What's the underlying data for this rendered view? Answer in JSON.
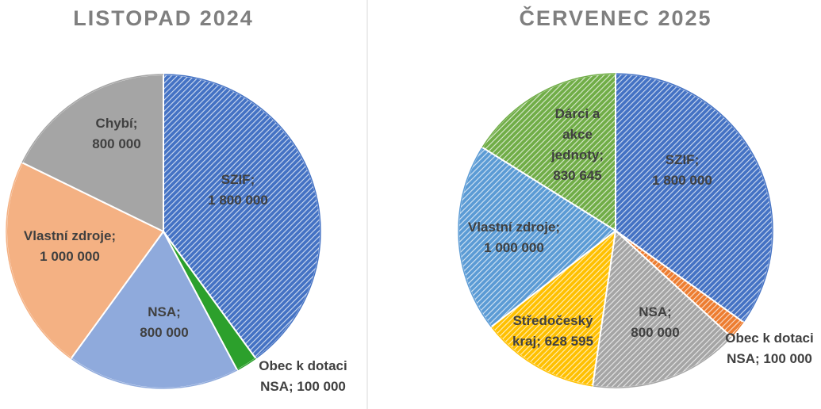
{
  "chart_data": [
    {
      "type": "pie",
      "title": "LISTOPAD 2024",
      "label_separator": ";",
      "categories": [
        "SZIF",
        "Obec k dotaci NSA",
        "NSA",
        "Vlastní zdroje",
        "Chybí"
      ],
      "values": [
        1800000,
        100000,
        800000,
        1000000,
        800000
      ],
      "value_labels": [
        "1 800 000",
        "100 000",
        "800 000",
        "1 000 000",
        "800 000"
      ],
      "colors": [
        "#4472c4",
        "#2ca02c",
        "#8faadc",
        "#f4b183",
        "#a5a5a5"
      ],
      "hatched": [
        true,
        false,
        false,
        false,
        false
      ]
    },
    {
      "type": "pie",
      "title": "ČERVENEC 2025",
      "label_separator": ";",
      "categories": [
        "SZIF",
        "Obec k dotaci NSA",
        "NSA",
        "Středočeský kraj",
        "Vlastní zdroje",
        "Dárci a akce jednoty"
      ],
      "values": [
        1800000,
        100000,
        800000,
        628595,
        1000000,
        830645
      ],
      "value_labels": [
        "1 800 000",
        "100 000",
        "800 000",
        "628 595",
        "1 000 000",
        "830 645"
      ],
      "colors": [
        "#4472c4",
        "#ed7d31",
        "#a5a5a5",
        "#ffc000",
        "#5b9bd5",
        "#70ad47"
      ],
      "hatched": [
        true,
        true,
        true,
        true,
        true,
        true
      ]
    }
  ]
}
